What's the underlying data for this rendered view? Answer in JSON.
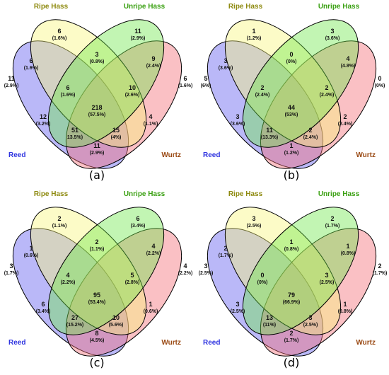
{
  "sets": [
    {
      "key": "reed",
      "name": "Reed",
      "color": "#2f34e0",
      "fill": "#5a55ee"
    },
    {
      "key": "ripe",
      "name": "Ripe Hass",
      "color": "#8e8a10",
      "fill": "#f7f57a"
    },
    {
      "key": "unripe",
      "name": "Unripe Hass",
      "color": "#3aa012",
      "fill": "#6ee84a"
    },
    {
      "key": "wurtz",
      "name": "Wurtz",
      "color": "#9a4a14",
      "fill": "#f26a72"
    }
  ],
  "panels": [
    {
      "caption": "(a)",
      "regions": {
        "ripe_only": {
          "count": "6",
          "pct": "(1.6%)"
        },
        "unripe_only": {
          "count": "11",
          "pct": "(2.9%)"
        },
        "reed_only": {
          "count": "11",
          "pct": "(2.9%)"
        },
        "wurtz_only": {
          "count": "6",
          "pct": "(1.6%)"
        },
        "reed_ripe": {
          "count": "6",
          "pct": "(1.6%)"
        },
        "ripe_unripe": {
          "count": "3",
          "pct": "(0.8%)"
        },
        "unripe_wurtz": {
          "count": "9",
          "pct": "(2.4%)"
        },
        "reed_ripe_unripe": {
          "count": "6",
          "pct": "(1.6%)"
        },
        "ripe_unripe_wurtz": {
          "count": "10",
          "pct": "(2.6%)"
        },
        "all": {
          "count": "218",
          "pct": "(57.5%)"
        },
        "reed_unripe": {
          "count": "12",
          "pct": "(3.2%)"
        },
        "ripe_wurtz": {
          "count": "4",
          "pct": "(1.1%)"
        },
        "reed_unripe_wurtz": {
          "count": "51",
          "pct": "13.5%)"
        },
        "reed_ripe_wurtz": {
          "count": "15",
          "pct": "(4%)"
        },
        "reed_wurtz": {
          "count": "11",
          "pct": "(2.9%)"
        }
      }
    },
    {
      "caption": "(b)",
      "regions": {
        "ripe_only": {
          "count": "1",
          "pct": "(1.2%)"
        },
        "unripe_only": {
          "count": "3",
          "pct": "(3.6%)"
        },
        "reed_only": {
          "count": "5",
          "pct": "(6%)"
        },
        "wurtz_only": {
          "count": "0",
          "pct": "(0%)"
        },
        "reed_ripe": {
          "count": "3",
          "pct": "(3.6%)"
        },
        "ripe_unripe": {
          "count": "0",
          "pct": "(0%)"
        },
        "unripe_wurtz": {
          "count": "4",
          "pct": "(4.8%)"
        },
        "reed_ripe_unripe": {
          "count": "2",
          "pct": "(2.4%)"
        },
        "ripe_unripe_wurtz": {
          "count": "2",
          "pct": "(2.4%)"
        },
        "all": {
          "count": "44",
          "pct": "(53%)"
        },
        "reed_unripe": {
          "count": "3",
          "pct": "(3.6%)"
        },
        "ripe_wurtz": {
          "count": "2",
          "pct": "(2.4%)"
        },
        "reed_unripe_wurtz": {
          "count": "11",
          "pct": "(13.3%)"
        },
        "reed_ripe_wurtz": {
          "count": "2",
          "pct": "(2.4%)"
        },
        "reed_wurtz": {
          "count": "1",
          "pct": "(1.2%)"
        }
      }
    },
    {
      "caption": "(c)",
      "regions": {
        "ripe_only": {
          "count": "2",
          "pct": "(1.1%)"
        },
        "unripe_only": {
          "count": "6",
          "pct": "(3.4%)"
        },
        "reed_only": {
          "count": "3",
          "pct": "(1.7%)"
        },
        "wurtz_only": {
          "count": "4",
          "pct": "(2.2%)"
        },
        "reed_ripe": {
          "count": "1",
          "pct": "(0.6%)"
        },
        "ripe_unripe": {
          "count": "2",
          "pct": "(1.1%)"
        },
        "unripe_wurtz": {
          "count": "4",
          "pct": "(2.2%)"
        },
        "reed_ripe_unripe": {
          "count": "4",
          "pct": "(2.2%)"
        },
        "ripe_unripe_wurtz": {
          "count": "5",
          "pct": "(2.8%)"
        },
        "all": {
          "count": "95",
          "pct": "(53.4%)"
        },
        "reed_unripe": {
          "count": "6",
          "pct": "(3.4%)"
        },
        "ripe_wurtz": {
          "count": "1",
          "pct": "(0.6%)"
        },
        "reed_unripe_wurtz": {
          "count": "27",
          "pct": "(15.2%)"
        },
        "reed_ripe_wurtz": {
          "count": "10",
          "pct": "(5.6%)"
        },
        "reed_wurtz": {
          "count": "8",
          "pct": "(4.5%)"
        }
      }
    },
    {
      "caption": "(d)",
      "regions": {
        "ripe_only": {
          "count": "3",
          "pct": "(2.5%)"
        },
        "unripe_only": {
          "count": "2",
          "pct": "(1.7%)"
        },
        "reed_only": {
          "count": "3",
          "pct": "(2.5%)"
        },
        "wurtz_only": {
          "count": "2",
          "pct": "(1.7%)"
        },
        "reed_ripe": {
          "count": "2",
          "pct": "(1.7%)"
        },
        "ripe_unripe": {
          "count": "1",
          "pct": "(0.8%)"
        },
        "unripe_wurtz": {
          "count": "1",
          "pct": "(0.8%)"
        },
        "reed_ripe_unripe": {
          "count": "0",
          "pct": "(0%)"
        },
        "ripe_unripe_wurtz": {
          "count": "3",
          "pct": "(2.5%)"
        },
        "all": {
          "count": "79",
          "pct": "(66.9%)"
        },
        "reed_unripe": {
          "count": "3",
          "pct": "(2.5%)"
        },
        "ripe_wurtz": {
          "count": "1",
          "pct": "(0.8%)"
        },
        "reed_unripe_wurtz": {
          "count": "13",
          "pct": "(11%)"
        },
        "reed_ripe_wurtz": {
          "count": "3",
          "pct": "(2.5%)"
        },
        "reed_wurtz": {
          "count": "2",
          "pct": "(1.7%)"
        }
      }
    }
  ]
}
